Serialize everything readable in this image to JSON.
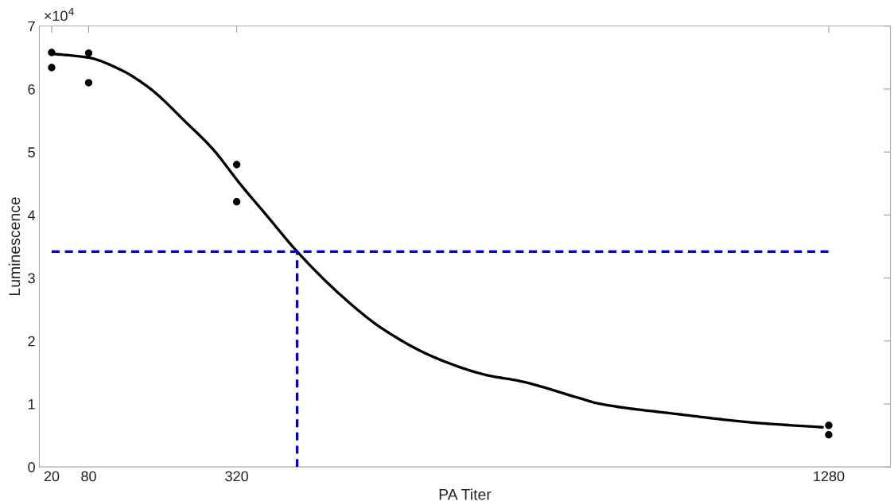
{
  "chart_data": {
    "type": "line",
    "xlabel": "PA Titer",
    "ylabel": "Luminescence",
    "annotations": [
      "×10$^{4}$"
    ],
    "xlim": [
      0,
      1380
    ],
    "xticks": [
      20,
      80,
      320,
      1280
    ],
    "ylim": [
      0,
      7
    ],
    "yticks": [
      0,
      1,
      2,
      3,
      4,
      5,
      6,
      7
    ],
    "grid": false,
    "series": [
      {
        "type": "scatter",
        "color": "#000000",
        "marker": "circle",
        "x": [
          20,
          20,
          80,
          80,
          320,
          320,
          1280,
          1280
        ],
        "values": [
          6.58,
          6.34,
          6.57,
          6.1,
          4.8,
          4.21,
          0.66,
          0.51
        ]
      },
      {
        "color": "#000000",
        "line_style": "solid",
        "x": [
          21,
          79,
          131,
          178,
          238,
          281,
          325,
          368,
          418,
          493,
          557,
          643,
          729,
          776,
          880,
          905,
          1034,
          1163,
          1270
        ],
        "values": [
          6.56,
          6.5,
          6.31,
          6.02,
          5.47,
          5.05,
          4.5,
          4.0,
          3.42,
          2.69,
          2.19,
          1.73,
          1.45,
          1.37,
          1.08,
          1.01,
          0.84,
          0.7,
          0.63
        ]
      },
      {
        "color": "#0000cc",
        "line_style": "dashed",
        "x": [
          20,
          1280
        ],
        "values": [
          3.42,
          3.42
        ]
      },
      {
        "color": "#0000cc",
        "line_style": "dashed",
        "x": [
          418,
          418
        ],
        "values": [
          0,
          3.42
        ]
      }
    ]
  }
}
